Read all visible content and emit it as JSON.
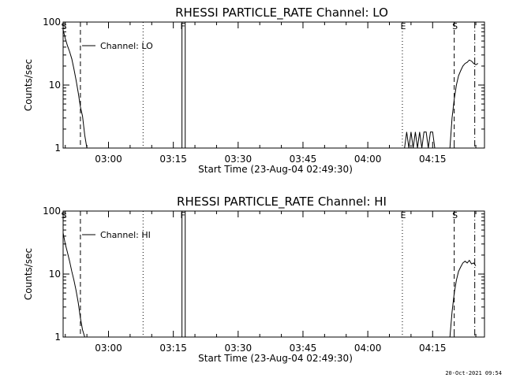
{
  "footer": "20-Oct-2021 09:54",
  "chart_data": [
    {
      "type": "line",
      "title": "RHESSI PARTICLE_RATE Channel: LO",
      "xlabel": "Start Time (23-Aug-04 02:49:30)",
      "ylabel": "Counts/sec",
      "yscale": "log",
      "ylim": [
        1,
        100
      ],
      "xlim": [
        "02:49:30",
        "04:27:00"
      ],
      "x_ticks": [
        "03:00",
        "03:15",
        "03:30",
        "03:45",
        "04:00",
        "04:15"
      ],
      "y_ticks": [
        "1",
        "10",
        "100"
      ],
      "grid": false,
      "legend": {
        "position": "top-left",
        "entries": [
          "Channel: LO"
        ]
      },
      "markers": [
        {
          "label": "S",
          "time": "02:49:30",
          "style": "dashed"
        },
        {
          "label": "",
          "time": "02:53:30",
          "style": "dashed"
        },
        {
          "label": "",
          "time": "03:08:00",
          "style": "dotted"
        },
        {
          "label": "F",
          "time": "03:17:00",
          "style": "solid"
        },
        {
          "label": "",
          "time": "03:17:45",
          "style": "solid"
        },
        {
          "label": "E",
          "time": "04:08:00",
          "style": "dotted"
        },
        {
          "label": "S",
          "time": "04:20:00",
          "style": "dashed"
        },
        {
          "label": "",
          "time": "04:24:45",
          "style": "dashdot"
        }
      ],
      "series": [
        {
          "x": [
            "02:49:30",
            "02:50:00",
            "02:50:30",
            "02:51:00",
            "02:51:30",
            "02:52:00",
            "02:52:30",
            "02:53:00",
            "02:53:30",
            "02:54:00",
            "02:54:30",
            "02:55:00"
          ],
          "y": [
            75,
            55,
            42,
            34,
            26,
            18,
            12,
            7.5,
            4.5,
            3.2,
            1.6,
            1
          ]
        },
        {
          "x": [
            "04:08:30",
            "04:09:00",
            "04:09:30",
            "04:10:00",
            "04:10:30",
            "04:11:00",
            "04:11:30",
            "04:12:00",
            "04:12:30",
            "04:13:00",
            "04:13:30",
            "04:14:00",
            "04:14:30",
            "04:15:00",
            "04:15:30"
          ],
          "y": [
            1,
            1.8,
            1,
            1.8,
            1,
            1.8,
            1,
            1.8,
            1,
            1.8,
            1.8,
            1,
            1.8,
            1.8,
            1
          ]
        },
        {
          "x": [
            "04:19:00",
            "04:19:30",
            "04:20:00",
            "04:20:30",
            "04:21:00",
            "04:21:30",
            "04:22:00",
            "04:22:30",
            "04:23:00",
            "04:23:30",
            "04:24:00",
            "04:24:30",
            "04:25:00",
            "04:25:30"
          ],
          "y": [
            1,
            3,
            6,
            10,
            14,
            17,
            20,
            22,
            23,
            25,
            24,
            22,
            21,
            22
          ]
        }
      ]
    },
    {
      "type": "line",
      "title": "RHESSI PARTICLE_RATE Channel: HI",
      "xlabel": "Start Time (23-Aug-04 02:49:30)",
      "ylabel": "Counts/sec",
      "yscale": "log",
      "ylim": [
        1,
        100
      ],
      "xlim": [
        "02:49:30",
        "04:27:00"
      ],
      "x_ticks": [
        "03:00",
        "03:15",
        "03:30",
        "03:45",
        "04:00",
        "04:15"
      ],
      "y_ticks": [
        "1",
        "10",
        "100"
      ],
      "grid": false,
      "legend": {
        "position": "top-left",
        "entries": [
          "Channel: HI"
        ]
      },
      "markers": [
        {
          "label": "S",
          "time": "02:49:30",
          "style": "dashed"
        },
        {
          "label": "",
          "time": "02:53:30",
          "style": "dashed"
        },
        {
          "label": "",
          "time": "03:08:00",
          "style": "dotted"
        },
        {
          "label": "F",
          "time": "03:17:00",
          "style": "solid"
        },
        {
          "label": "",
          "time": "03:17:45",
          "style": "solid"
        },
        {
          "label": "E",
          "time": "04:08:00",
          "style": "dotted"
        },
        {
          "label": "S",
          "time": "04:20:00",
          "style": "dashed"
        },
        {
          "label": "",
          "time": "04:24:45",
          "style": "dashdot"
        }
      ],
      "series": [
        {
          "x": [
            "02:49:30",
            "02:50:00",
            "02:50:30",
            "02:51:00",
            "02:51:30",
            "02:52:00",
            "02:52:30",
            "02:53:00",
            "02:53:30",
            "02:54:00",
            "02:54:30"
          ],
          "y": [
            45,
            30,
            22,
            16,
            11,
            8,
            5.5,
            3.5,
            2,
            1.3,
            1
          ]
        },
        {
          "x": [
            "04:19:00",
            "04:19:30",
            "04:20:00",
            "04:20:30",
            "04:21:00",
            "04:21:30",
            "04:22:00",
            "04:22:30",
            "04:23:00",
            "04:23:30",
            "04:24:00",
            "04:24:30",
            "04:25:00"
          ],
          "y": [
            1,
            2.5,
            5,
            8,
            11,
            13,
            15,
            16,
            15,
            16.5,
            14.5,
            15,
            13.5
          ]
        }
      ]
    }
  ]
}
